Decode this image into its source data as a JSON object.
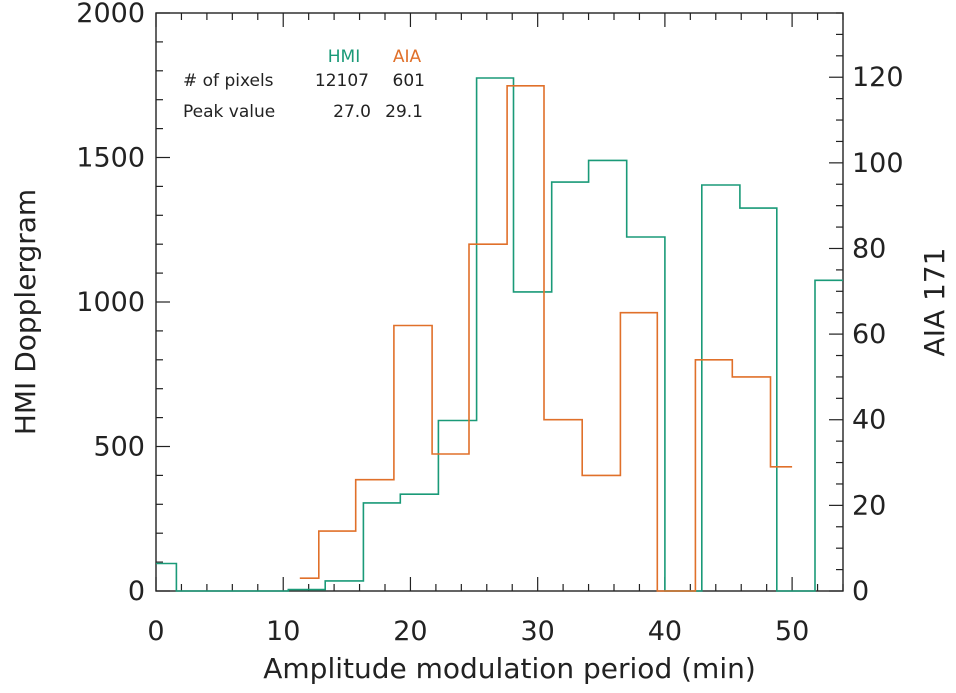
{
  "chart_data": {
    "type": "histogram",
    "xlabel": "Amplitude modulation period (min)",
    "ylabel_left": "HMI Dopplergram",
    "ylabel_right": "AIA 171",
    "xlim": [
      0,
      54
    ],
    "ylim_left": [
      0,
      2000
    ],
    "ylim_right": [
      0,
      135
    ],
    "x_ticks": [
      "0",
      "10",
      "20",
      "30",
      "40",
      "50"
    ],
    "y_ticks_left": [
      "0",
      "500",
      "1000",
      "1500",
      "2000"
    ],
    "y_ticks_right": [
      "0",
      "20",
      "40",
      "60",
      "80",
      "100",
      "120"
    ],
    "legend": {
      "series_headers": [
        "HMI",
        "AIA"
      ],
      "rows": [
        {
          "label": "# of pixels",
          "values": [
            "12107",
            "601"
          ]
        },
        {
          "label": "Peak value",
          "values": [
            "27.0",
            "29.1"
          ]
        }
      ]
    },
    "series": [
      {
        "name": "HMI",
        "axis": "left",
        "color": "#1a9a78",
        "edges": [
          0,
          1.6,
          4.5,
          7.4,
          10.4,
          13.3,
          16.3,
          19.2,
          22.2,
          25.2,
          28.1,
          31.1,
          34.0,
          37.0,
          40.0,
          42.9,
          45.9,
          48.8,
          51.8,
          54.0
        ],
        "values": [
          95,
          0,
          0,
          0,
          5,
          35,
          305,
          335,
          590,
          1775,
          1035,
          1415,
          1490,
          1225,
          0,
          1405,
          1325,
          0,
          1075
        ]
      },
      {
        "name": "AIA",
        "axis": "right",
        "color": "#e0702a",
        "edges": [
          11.3,
          12.8,
          15.7,
          18.7,
          21.7,
          24.6,
          27.6,
          30.5,
          33.5,
          36.5,
          39.4,
          42.4,
          45.3,
          48.3,
          50.0
        ],
        "values": [
          3,
          14,
          26,
          62,
          32,
          81,
          118,
          40,
          27,
          65,
          0,
          54,
          50,
          29
        ]
      }
    ]
  }
}
